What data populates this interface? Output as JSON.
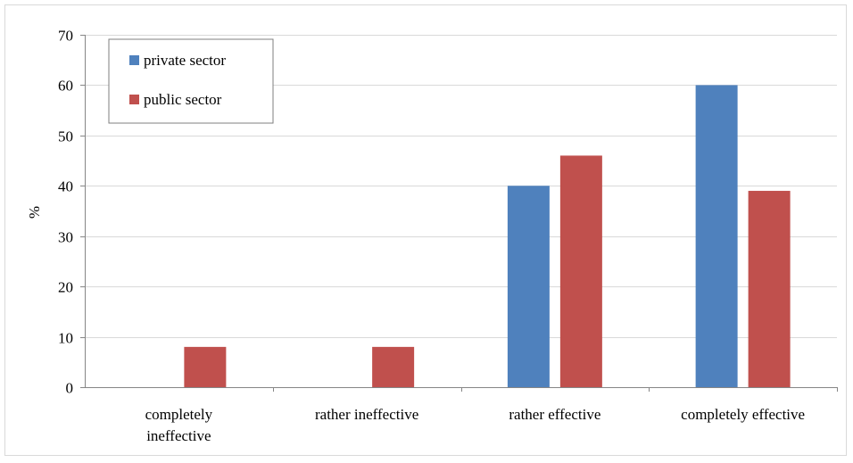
{
  "chart_data": {
    "type": "bar",
    "categories": [
      [
        "completely",
        "ineffective"
      ],
      [
        "rather ineffective"
      ],
      [
        "rather effective"
      ],
      [
        "completely effective"
      ]
    ],
    "series": [
      {
        "name": "private sector",
        "color": "#4f81bd",
        "values": [
          0,
          0,
          40,
          60
        ]
      },
      {
        "name": "public sector",
        "color": "#c0504d",
        "values": [
          8,
          8,
          46,
          39
        ]
      }
    ],
    "xlabel": "",
    "ylabel": "%",
    "ylim": [
      0,
      70
    ],
    "yticks": [
      0,
      10,
      20,
      30,
      40,
      50,
      60,
      70
    ],
    "grid": true,
    "legend_position": "top-left"
  }
}
